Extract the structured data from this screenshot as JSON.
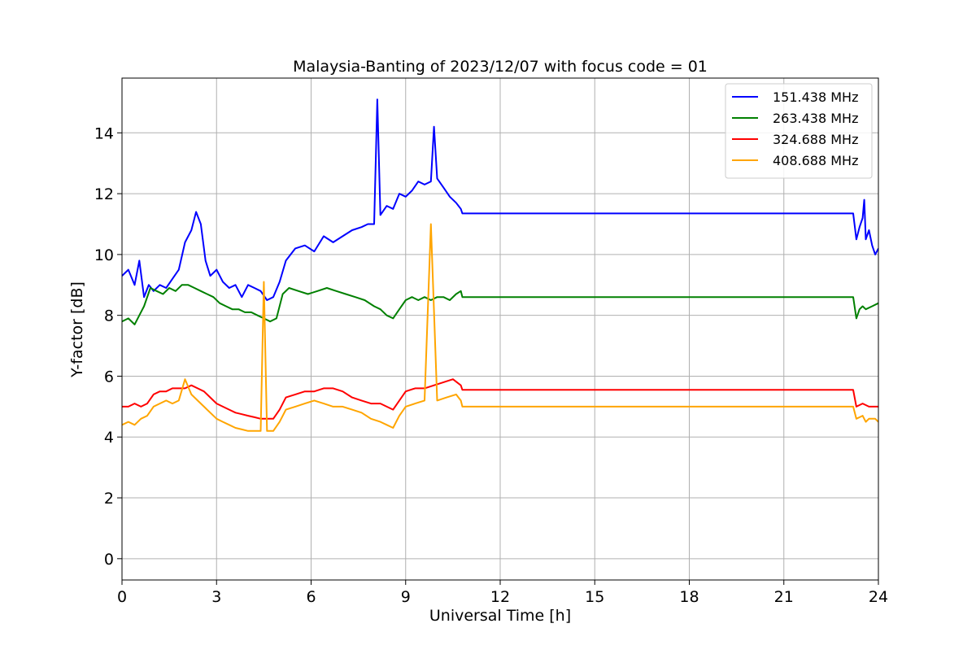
{
  "chart_data": {
    "type": "line",
    "title": "Malaysia-Banting of 2023/12/07 with focus code = 01",
    "xlabel": "Universal Time [h]",
    "ylabel": "Y-factor [dB]",
    "xlim": [
      0,
      24
    ],
    "ylim": [
      -0.7,
      15.8
    ],
    "xticks": [
      0,
      3,
      6,
      9,
      12,
      15,
      18,
      21,
      24
    ],
    "yticks": [
      0,
      2,
      4,
      6,
      8,
      10,
      12,
      14
    ],
    "grid": true,
    "legend_position": "top-right",
    "series": [
      {
        "name": "151.438 MHz",
        "color": "#0000ff",
        "x": [
          0,
          0.2,
          0.4,
          0.55,
          0.7,
          0.85,
          1.0,
          1.2,
          1.4,
          1.6,
          1.8,
          2.0,
          2.2,
          2.35,
          2.5,
          2.65,
          2.8,
          3.0,
          3.2,
          3.4,
          3.6,
          3.8,
          4.0,
          4.2,
          4.4,
          4.6,
          4.8,
          5.0,
          5.2,
          5.5,
          5.8,
          6.1,
          6.4,
          6.7,
          7.0,
          7.3,
          7.6,
          7.8,
          8.0,
          8.1,
          8.2,
          8.4,
          8.6,
          8.8,
          9.0,
          9.2,
          9.4,
          9.6,
          9.8,
          9.9,
          10.0,
          10.2,
          10.4,
          10.6,
          10.75,
          10.8,
          23.2,
          23.3,
          23.4,
          23.5,
          23.55,
          23.6,
          23.7,
          23.8,
          23.9,
          24.0
        ],
        "y": [
          9.3,
          9.5,
          9.0,
          9.8,
          8.6,
          9.0,
          8.8,
          9.0,
          8.9,
          9.2,
          9.5,
          10.4,
          10.8,
          11.4,
          11.0,
          9.8,
          9.3,
          9.5,
          9.1,
          8.9,
          9.0,
          8.6,
          9.0,
          8.9,
          8.8,
          8.5,
          8.6,
          9.1,
          9.8,
          10.2,
          10.3,
          10.1,
          10.6,
          10.4,
          10.6,
          10.8,
          10.9,
          11.0,
          11.0,
          15.1,
          11.3,
          11.6,
          11.5,
          12.0,
          11.9,
          12.1,
          12.4,
          12.3,
          12.4,
          14.2,
          12.5,
          12.2,
          11.9,
          11.7,
          11.5,
          11.35,
          11.35,
          10.5,
          10.9,
          11.2,
          11.8,
          10.5,
          10.8,
          10.3,
          10.0,
          10.2
        ]
      },
      {
        "name": "263.438 MHz",
        "color": "#008000",
        "x": [
          0,
          0.2,
          0.4,
          0.55,
          0.7,
          0.9,
          1.1,
          1.3,
          1.5,
          1.7,
          1.9,
          2.1,
          2.3,
          2.5,
          2.7,
          2.9,
          3.1,
          3.3,
          3.5,
          3.7,
          3.9,
          4.1,
          4.3,
          4.5,
          4.7,
          4.9,
          5.1,
          5.3,
          5.6,
          5.9,
          6.2,
          6.5,
          6.8,
          7.1,
          7.4,
          7.7,
          8.0,
          8.2,
          8.4,
          8.6,
          8.8,
          9.0,
          9.2,
          9.4,
          9.6,
          9.8,
          10.0,
          10.2,
          10.4,
          10.6,
          10.75,
          10.8,
          23.2,
          23.3,
          23.4,
          23.5,
          23.6,
          23.8,
          24.0
        ],
        "y": [
          7.8,
          7.9,
          7.7,
          8.0,
          8.3,
          8.9,
          8.8,
          8.7,
          8.9,
          8.8,
          9.0,
          9.0,
          8.9,
          8.8,
          8.7,
          8.6,
          8.4,
          8.3,
          8.2,
          8.2,
          8.1,
          8.1,
          8.0,
          7.9,
          7.8,
          7.9,
          8.7,
          8.9,
          8.8,
          8.7,
          8.8,
          8.9,
          8.8,
          8.7,
          8.6,
          8.5,
          8.3,
          8.2,
          8.0,
          7.9,
          8.2,
          8.5,
          8.6,
          8.5,
          8.6,
          8.5,
          8.6,
          8.6,
          8.5,
          8.7,
          8.8,
          8.6,
          8.6,
          7.9,
          8.2,
          8.3,
          8.2,
          8.3,
          8.4
        ]
      },
      {
        "name": "324.688 MHz",
        "color": "#ff0000",
        "x": [
          0,
          0.2,
          0.4,
          0.6,
          0.8,
          1.0,
          1.2,
          1.4,
          1.6,
          1.8,
          2.0,
          2.2,
          2.4,
          2.6,
          2.8,
          3.0,
          3.2,
          3.4,
          3.6,
          3.8,
          4.0,
          4.2,
          4.4,
          4.6,
          4.8,
          5.0,
          5.2,
          5.5,
          5.8,
          6.1,
          6.4,
          6.7,
          7.0,
          7.3,
          7.6,
          7.9,
          8.2,
          8.4,
          8.6,
          8.8,
          9.0,
          9.3,
          9.6,
          9.9,
          10.2,
          10.5,
          10.75,
          10.8,
          23.2,
          23.3,
          23.5,
          23.7,
          23.9,
          24.0
        ],
        "y": [
          5.0,
          5.0,
          5.1,
          5.0,
          5.1,
          5.4,
          5.5,
          5.5,
          5.6,
          5.6,
          5.6,
          5.7,
          5.6,
          5.5,
          5.3,
          5.1,
          5.0,
          4.9,
          4.8,
          4.75,
          4.7,
          4.65,
          4.6,
          4.6,
          4.6,
          4.9,
          5.3,
          5.4,
          5.5,
          5.5,
          5.6,
          5.6,
          5.5,
          5.3,
          5.2,
          5.1,
          5.1,
          5.0,
          4.9,
          5.2,
          5.5,
          5.6,
          5.6,
          5.7,
          5.8,
          5.9,
          5.7,
          5.55,
          5.55,
          5.0,
          5.1,
          5.0,
          5.0,
          5.0
        ]
      },
      {
        "name": "408.688 MHz",
        "color": "#ffa500",
        "x": [
          0,
          0.2,
          0.4,
          0.6,
          0.8,
          1.0,
          1.2,
          1.4,
          1.6,
          1.8,
          2.0,
          2.2,
          2.4,
          2.6,
          2.8,
          3.0,
          3.2,
          3.4,
          3.6,
          3.8,
          4.0,
          4.2,
          4.4,
          4.5,
          4.6,
          4.8,
          5.0,
          5.2,
          5.5,
          5.8,
          6.1,
          6.4,
          6.7,
          7.0,
          7.3,
          7.6,
          7.9,
          8.2,
          8.4,
          8.6,
          8.8,
          9.0,
          9.3,
          9.6,
          9.8,
          10.0,
          10.3,
          10.6,
          10.75,
          10.8,
          23.2,
          23.3,
          23.5,
          23.6,
          23.7,
          23.9,
          24.0
        ],
        "y": [
          4.4,
          4.5,
          4.4,
          4.6,
          4.7,
          5.0,
          5.1,
          5.2,
          5.1,
          5.2,
          5.9,
          5.4,
          5.2,
          5.0,
          4.8,
          4.6,
          4.5,
          4.4,
          4.3,
          4.25,
          4.2,
          4.2,
          4.2,
          9.1,
          4.2,
          4.2,
          4.5,
          4.9,
          5.0,
          5.1,
          5.2,
          5.1,
          5.0,
          5.0,
          4.9,
          4.8,
          4.6,
          4.5,
          4.4,
          4.3,
          4.7,
          5.0,
          5.1,
          5.2,
          11.0,
          5.2,
          5.3,
          5.4,
          5.2,
          5.0,
          5.0,
          4.6,
          4.7,
          4.5,
          4.6,
          4.6,
          4.5
        ]
      }
    ]
  }
}
